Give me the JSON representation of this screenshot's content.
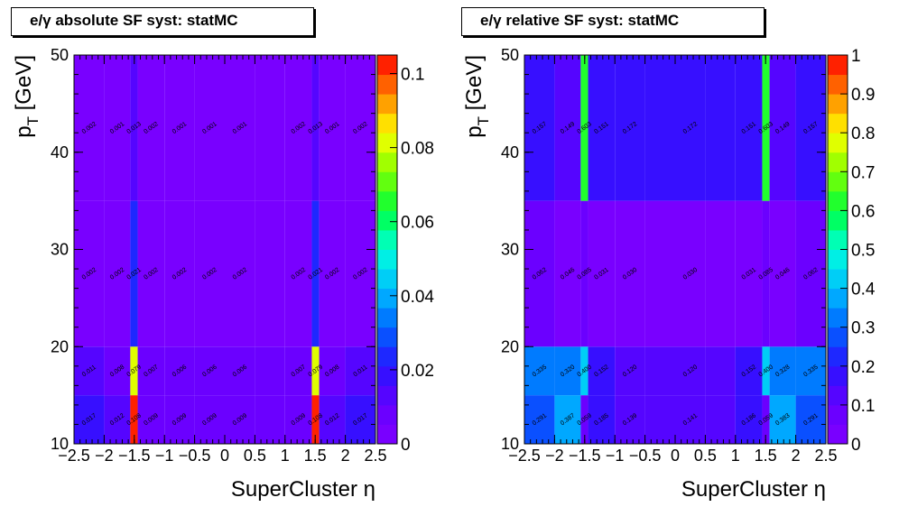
{
  "chart_data": [
    {
      "type": "heatmap",
      "title": "e/γ absolute SF syst: statMC",
      "xlabel": "SuperCluster  η",
      "ylabel": "p_T [GeV]",
      "x_edges": [
        -2.5,
        -2.0,
        -1.566,
        -1.444,
        -1.0,
        -0.5,
        0.0,
        0.5,
        1.0,
        1.444,
        1.566,
        2.0,
        2.5
      ],
      "y_edges": [
        10,
        15,
        20,
        35,
        50
      ],
      "xlim": [
        -2.5,
        2.5
      ],
      "ylim": [
        10,
        50
      ],
      "zlim": [
        0,
        0.105
      ],
      "x_ticks": [
        "-2.5",
        "-2",
        "-1.5",
        "-1",
        "-0.5",
        "0",
        "0.5",
        "1",
        "1.5",
        "2",
        "2.5"
      ],
      "y_ticks": [
        "10",
        "20",
        "30",
        "40",
        "50"
      ],
      "z_ticks": [
        "0",
        "0.02",
        "0.04",
        "0.06",
        "0.08",
        "0.1"
      ],
      "values": [
        [
          0.017,
          0.012,
          0.108,
          0.009,
          0.009,
          0.009,
          0.009,
          0.009,
          0.108,
          0.012,
          0.017
        ],
        [
          0.011,
          0.008,
          0.079,
          0.007,
          0.006,
          0.006,
          0.006,
          0.007,
          0.079,
          0.008,
          0.011
        ],
        [
          0.002,
          0.002,
          0.021,
          0.002,
          0.002,
          0.002,
          0.002,
          0.002,
          0.021,
          0.002,
          0.002
        ],
        [
          0.002,
          0.001,
          0.013,
          0.002,
          0.001,
          0.001,
          0.001,
          0.002,
          0.013,
          0.001,
          0.002
        ]
      ],
      "labels": [
        [
          "0.017",
          "0.012",
          "0.108",
          "0.009",
          "0.009",
          "0.009",
          "0.009",
          "0.009",
          "0.108",
          "0.012",
          "0.017"
        ],
        [
          "0.011",
          "0.008",
          "0.079",
          "0.007",
          "0.006",
          "0.006",
          "0.006",
          "0.007",
          "0.079",
          "0.008",
          "0.011"
        ],
        [
          "0.002",
          "0.002",
          "0.021",
          "0.002",
          "0.002",
          "0.002",
          "0.002",
          "0.002",
          "0.021",
          "0.002",
          "0.002"
        ],
        [
          "0.002",
          "0.001",
          "0.013",
          "0.002",
          "0.001",
          "0.001",
          "0.001",
          "0.002",
          "0.013",
          "0.001",
          "0.002"
        ]
      ]
    },
    {
      "type": "heatmap",
      "title": "e/γ relative SF syst: statMC",
      "xlabel": "SuperCluster  η",
      "ylabel": "p_T [GeV]",
      "x_edges": [
        -2.5,
        -2.0,
        -1.566,
        -1.444,
        -1.0,
        -0.5,
        0.0,
        0.5,
        1.0,
        1.444,
        1.566,
        2.0,
        2.5
      ],
      "y_edges": [
        10,
        15,
        20,
        35,
        50
      ],
      "xlim": [
        -2.5,
        2.5
      ],
      "ylim": [
        10,
        50
      ],
      "zlim": [
        0,
        1
      ],
      "x_ticks": [
        "-2.5",
        "-2",
        "-1.5",
        "-1",
        "-0.5",
        "0",
        "0.5",
        "1",
        "1.5",
        "2",
        "2.5"
      ],
      "y_ticks": [
        "10",
        "20",
        "30",
        "40",
        "50"
      ],
      "z_ticks": [
        "0",
        "0.1",
        "0.2",
        "0.3",
        "0.4",
        "0.5",
        "0.6",
        "0.7",
        "0.8",
        "0.9",
        "1"
      ],
      "values": [
        [
          0.291,
          0.387,
          0.059,
          0.185,
          0.139,
          0.141,
          0.186,
          0.059,
          0.383,
          0.291,
          null
        ],
        [
          0.335,
          0.32,
          0.4,
          0.152,
          0.12,
          0.12,
          0.152,
          0.4,
          0.328,
          0.335,
          null
        ],
        [
          0.062,
          0.046,
          0.085,
          0.031,
          0.03,
          0.03,
          0.031,
          0.085,
          0.046,
          0.062,
          null
        ],
        [
          0.157,
          0.149,
          0.603,
          0.151,
          0.172,
          0.172,
          0.151,
          0.603,
          0.149,
          0.157,
          null
        ]
      ],
      "labels": [
        [
          "0.291",
          "0.387",
          "0.059",
          "0.185",
          "0.139",
          "0.141",
          "0.186",
          "0.059",
          "0.383",
          "0.291"
        ],
        [
          "0.335",
          "0.320",
          "0.400",
          "0.152",
          "0.120",
          "0.120",
          "0.152",
          "0.400",
          "0.328",
          "0.335"
        ],
        [
          "0.062",
          "0.046",
          "0.085",
          "0.031",
          "0.030",
          "0.030",
          "0.031",
          "0.085",
          "0.046",
          "0.062"
        ],
        [
          "0.157",
          "0.149",
          "0.603",
          "0.151",
          "0.172",
          "0.172",
          "0.151",
          "0.603",
          "0.149",
          "0.157"
        ]
      ],
      "values_by_bin": [
        [
          0.291,
          0.387,
          0.059,
          0.185,
          0.139,
          0.141,
          0.186,
          0.059,
          0.383,
          0.291
        ],
        [
          0.335,
          0.32,
          0.4,
          0.152,
          0.12,
          0.12,
          0.152,
          0.4,
          0.328,
          0.335
        ],
        [
          0.062,
          0.046,
          0.085,
          0.031,
          0.03,
          0.03,
          0.031,
          0.085,
          0.046,
          0.062
        ],
        [
          0.157,
          0.149,
          0.603,
          0.151,
          0.172,
          0.172,
          0.151,
          0.603,
          0.149,
          0.157
        ]
      ],
      "bin_index_map": [
        0,
        1,
        2,
        3,
        4,
        5,
        6,
        7,
        8,
        9
      ]
    }
  ]
}
